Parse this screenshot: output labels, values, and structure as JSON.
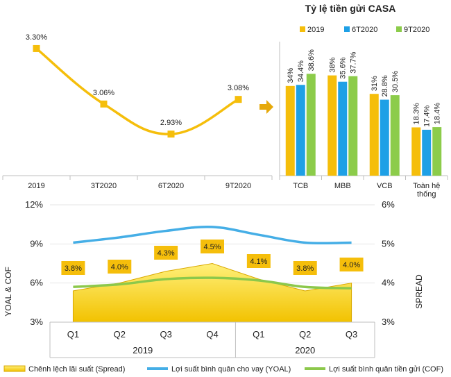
{
  "colors": {
    "line_yellow": "#F5BE0B",
    "bar_2019": "#F5BE0B",
    "bar_6T2020": "#1EA0E6",
    "bar_9T2020": "#8CCC4A",
    "spread_fill": "#F2C200",
    "yoal_line": "#45AEE6",
    "cof_line": "#8CC84B",
    "label_box": "#F5BE0B",
    "arrow": "#E6A90A",
    "axis": "#BFBFBF"
  },
  "chart_data": [
    {
      "type": "line",
      "categories": [
        "2019",
        "3T2020",
        "6T2020",
        "9T2020"
      ],
      "values": [
        3.3,
        3.06,
        2.93,
        3.08
      ],
      "value_labels": [
        "3.30%",
        "3.06%",
        "2.93%",
        "3.08%"
      ],
      "ylim": [
        2.75,
        3.42
      ]
    },
    {
      "type": "bar",
      "title": "Tỷ lệ tiền gửi CASA",
      "categories": [
        "TCB",
        "MBB",
        "VCB",
        "Toàn hệ thống"
      ],
      "category_lines": [
        [
          "TCB"
        ],
        [
          "MBB"
        ],
        [
          "VCB"
        ],
        [
          "Toàn hệ",
          "thống"
        ]
      ],
      "legend_position": "top",
      "ylim": [
        0,
        45
      ],
      "series": [
        {
          "name": "2019",
          "values": [
            34.0,
            38.0,
            31.0,
            18.3
          ],
          "labels": [
            "34%",
            "38%",
            "31%",
            "18.3%"
          ]
        },
        {
          "name": "6T2020",
          "values": [
            34.4,
            35.6,
            28.8,
            17.4
          ],
          "labels": [
            "34.4%",
            "35.6%",
            "28.8%",
            "17.4%"
          ]
        },
        {
          "name": "9T2020",
          "values": [
            38.6,
            37.7,
            30.5,
            18.4
          ],
          "labels": [
            "38.6%",
            "37.7%",
            "30.5%",
            "18.4%"
          ]
        }
      ]
    },
    {
      "type": "area",
      "categories": [
        "Q1",
        "Q2",
        "Q3",
        "Q4",
        "Q1",
        "Q2",
        "Q3"
      ],
      "year_groups": [
        {
          "label": "2019",
          "count": 4
        },
        {
          "label": "2020",
          "count": 3
        }
      ],
      "ylabel_left": "YOAL & COF",
      "ylabel_right": "SPREAD",
      "left_ticks": [
        "3%",
        "6%",
        "9%",
        "12%"
      ],
      "left_ylim": [
        3,
        12
      ],
      "right_ticks": [
        "3%",
        "4%",
        "5%",
        "6%"
      ],
      "right_ylim": [
        3,
        6
      ],
      "series": [
        {
          "name": "Chênh lệch lãi suất (Spread)",
          "axis": "right",
          "kind": "area",
          "values": [
            3.8,
            4.0,
            4.3,
            4.5,
            4.1,
            3.8,
            4.0
          ],
          "labels": [
            "3.8%",
            "4.0%",
            "4.3%",
            "4.5%",
            "4.1%",
            "3.8%",
            "4.0%"
          ]
        },
        {
          "name": "Lợi suất bình quân cho vay (YOAL)",
          "axis": "left",
          "kind": "line",
          "values": [
            9.1,
            9.5,
            10.0,
            10.3,
            9.7,
            9.1,
            9.1
          ]
        },
        {
          "name": "Lợi suất bình quân tiền gửi (COF)",
          "axis": "left",
          "kind": "line",
          "values": [
            5.7,
            5.9,
            6.3,
            6.4,
            6.2,
            5.7,
            5.6
          ]
        }
      ]
    }
  ]
}
